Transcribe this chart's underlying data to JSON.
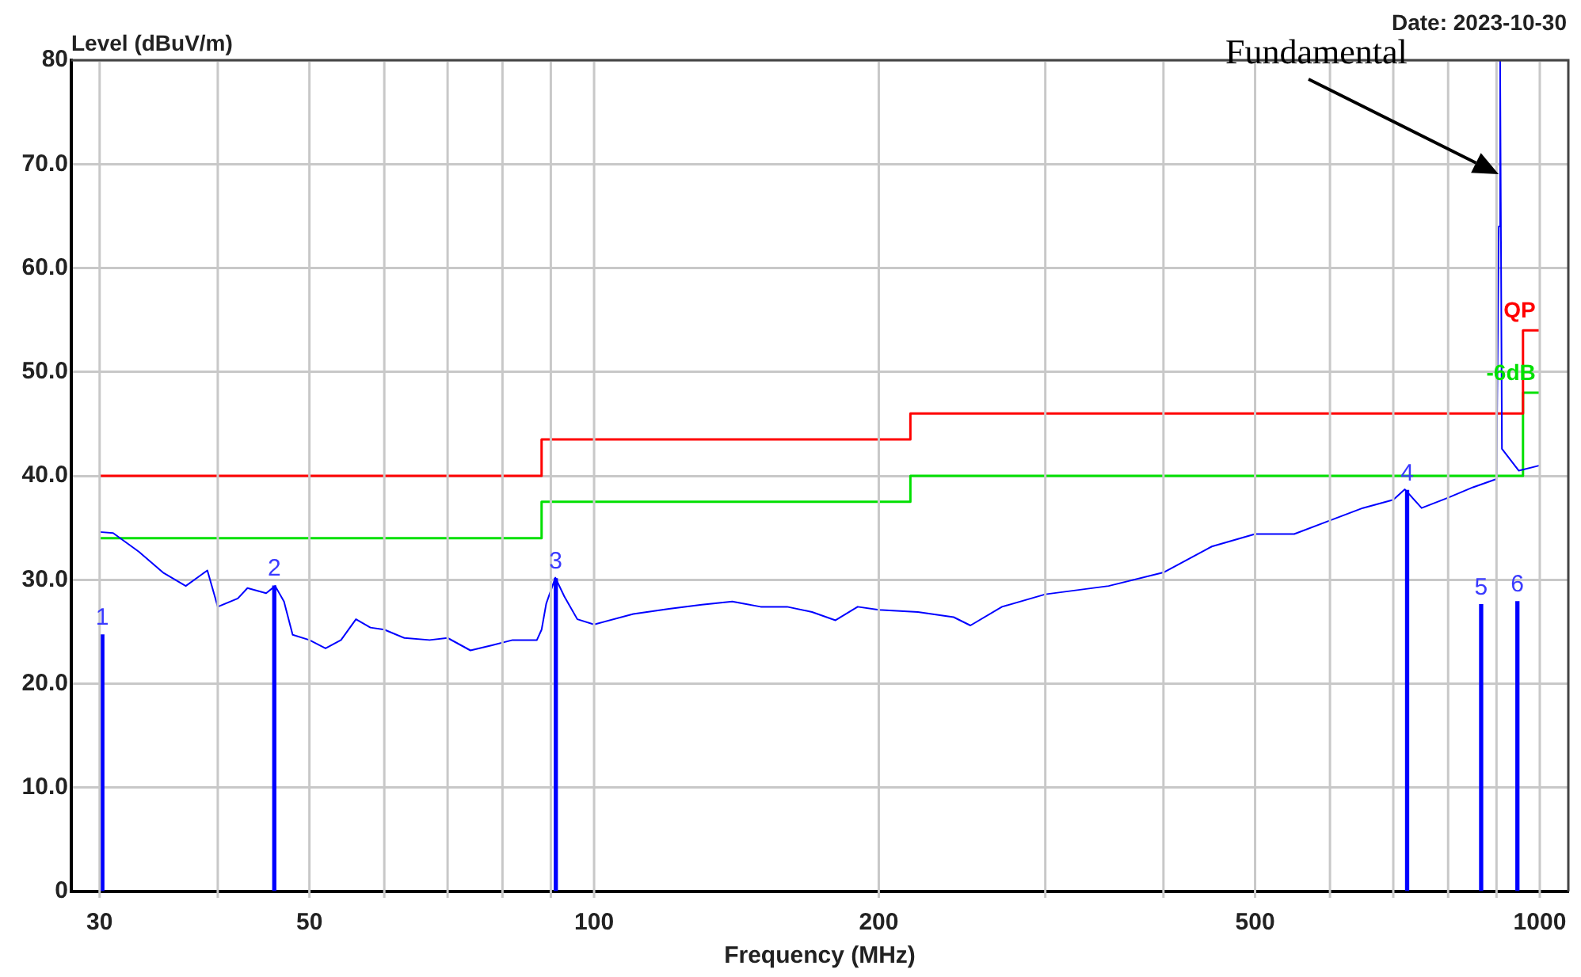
{
  "chart_data": {
    "type": "line",
    "xlabel": "Frequency (MHz)",
    "ylabel": "Level (dBuV/m)",
    "log": "x",
    "grid": true,
    "legend": false,
    "marker": "none",
    "xlim": [
      28,
      1072
    ],
    "xticks": [
      30,
      {
        "value": 40,
        "label": null
      },
      50,
      {
        "value": 60,
        "label": null
      },
      {
        "value": 70,
        "label": null
      },
      {
        "value": 80,
        "label": null
      },
      {
        "value": 90,
        "label": null
      },
      100,
      200,
      {
        "value": 300,
        "label": null
      },
      {
        "value": 400,
        "label": null
      },
      500,
      {
        "value": 600,
        "label": null
      },
      {
        "value": 700,
        "label": null
      },
      {
        "value": 800,
        "label": null
      },
      {
        "value": 900,
        "label": null
      },
      1000
    ],
    "ylim": [
      0,
      80
    ],
    "yticks": [
      0,
      {
        "value": 10,
        "label": "10.0"
      },
      {
        "value": 20,
        "label": "20.0"
      },
      {
        "value": 30,
        "label": "30.0"
      },
      {
        "value": 40,
        "label": "40.0"
      },
      {
        "value": 50,
        "label": "50.0"
      },
      {
        "value": 60,
        "label": "60.0"
      },
      {
        "value": 70,
        "label": "70.0"
      },
      80
    ],
    "series": [
      {
        "color": "#0000ff",
        "x": [
          30,
          31,
          33,
          35,
          37,
          39,
          40,
          42,
          43,
          45,
          46,
          47,
          48,
          50,
          52,
          54,
          56,
          58,
          60,
          63,
          67,
          70,
          74,
          78,
          82,
          87,
          88,
          89,
          91,
          93,
          96,
          100,
          110,
          120,
          130,
          140,
          150,
          160,
          170,
          180,
          190,
          200,
          220,
          240,
          250,
          270,
          300,
          350,
          400,
          450,
          500,
          550,
          600,
          650,
          700,
          720,
          750,
          800,
          850,
          900,
          905,
          908,
          912,
          950,
          1000
        ],
        "values": [
          34.6,
          34.5,
          32.7,
          30.7,
          29.4,
          30.9,
          27.4,
          28.2,
          29.2,
          28.7,
          29.4,
          27.9,
          24.7,
          24.2,
          23.4,
          24.2,
          26.2,
          25.4,
          25.2,
          24.4,
          24.2,
          24.4,
          23.2,
          23.7,
          24.2,
          24.2,
          25.2,
          27.7,
          30.2,
          28.4,
          26.2,
          25.7,
          26.7,
          27.2,
          27.6,
          27.9,
          27.4,
          27.4,
          26.9,
          26.1,
          27.4,
          27.1,
          26.9,
          26.4,
          25.6,
          27.4,
          28.6,
          29.4,
          30.7,
          33.2,
          34.4,
          34.4,
          35.7,
          36.9,
          37.7,
          38.7,
          36.9,
          37.9,
          38.9,
          39.7,
          64,
          80,
          42.6,
          40.5,
          41
        ]
      },
      {
        "type": "step",
        "name": "QP",
        "color": "#ff0000",
        "x": [
          30,
          88,
          216,
          960,
          1000
        ],
        "values": [
          40,
          43.5,
          46,
          54,
          54
        ]
      },
      {
        "type": "step",
        "name": "-6dB",
        "color": "#00e000",
        "x": [
          30,
          88,
          216,
          960,
          1000
        ],
        "values": [
          34,
          37.5,
          40,
          48,
          48
        ]
      },
      {
        "type": "bar",
        "color": "#0000ff",
        "x": [
          30.2,
          45.9,
          91.1,
          724,
          867,
          947
        ],
        "values": [
          24.7,
          29.4,
          30.1,
          38.6,
          27.6,
          27.9
        ]
      }
    ],
    "annotations": [
      {
        "text": "1",
        "x": 30.2,
        "y": 24.7
      },
      {
        "text": "2",
        "x": 45.9,
        "y": 29.4
      },
      {
        "text": "3",
        "x": 91.1,
        "y": 30.1
      },
      {
        "text": "4",
        "x": 724,
        "y": 38.6
      },
      {
        "text": "5",
        "x": 867,
        "y": 27.6
      },
      {
        "text": "6",
        "x": 947,
        "y": 27.9
      },
      "Date: 2023-10-30",
      "Fundamental"
    ]
  }
}
